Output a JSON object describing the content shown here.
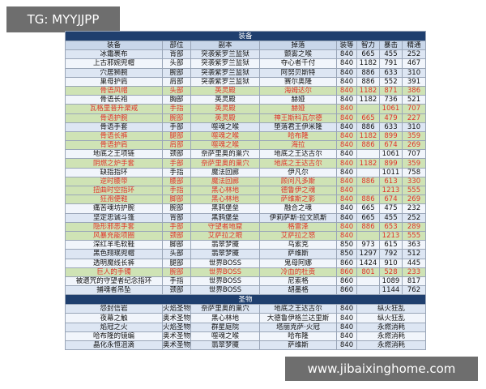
{
  "watermark_top": "TG: MYYJJPP",
  "watermark_bottom": "www.jibaixinghome.com",
  "gear": {
    "title": "装备",
    "headers": [
      "装备",
      "部位",
      "副本",
      "掉落",
      "装等",
      "智力",
      "暴击",
      "精通"
    ],
    "rows": [
      {
        "cells": [
          "冰霜裹布",
          "背部",
          "突袭紫罗兰监狱",
          "颤雾之喉",
          840,
          665,
          455,
          252
        ]
      },
      {
        "cells": [
          "上古邪婉兜帽",
          "头部",
          "突袭紫罗兰监狱",
          "夺心者千付",
          840,
          1182,
          791,
          467
        ]
      },
      {
        "cells": [
          "穴居狮腕",
          "腕部",
          "突袭紫罗兰监狱",
          "阿努贝斯特",
          840,
          886,
          633,
          310
        ]
      },
      {
        "cells": [
          "巢母护肩",
          "肩部",
          "突袭紫罗兰监狱",
          "赛尔奥隆",
          840,
          886,
          552,
          391
        ]
      },
      {
        "cells": [
          "骨语风帽",
          "头部",
          "英灵殿",
          "海姆达尔",
          840,
          1182,
          871,
          386
        ],
        "color": "#e0332b"
      },
      {
        "cells": [
          "骨语长袍",
          "胸部",
          "英灵殿",
          "赫娅",
          840,
          1182,
          736,
          521
        ]
      },
      {
        "cells": [
          "瓦格里普升渠戒",
          "手指",
          "英灵殿",
          "赫娅",
          840,
          null,
          1061,
          707
        ],
        "color": "#e0332b"
      },
      {
        "cells": [
          "骨语护腕",
          "腕部",
          "英灵殿",
          "神王斯科瓦尔德",
          840,
          665,
          479,
          227
        ],
        "color": "#e0332b"
      },
      {
        "cells": [
          "骨语手套",
          "手部",
          "噬魂之喉",
          "堕落君王伊米隆",
          840,
          886,
          633,
          310
        ]
      },
      {
        "cells": [
          "骨语长裤",
          "腿部",
          "噬魂之喉",
          "哈布隆",
          840,
          1182,
          899,
          359
        ],
        "color": "#e0332b"
      },
      {
        "cells": [
          "骨语护肩",
          "肩部",
          "噬魂之喉",
          "海拉",
          840,
          886,
          674,
          269
        ],
        "color": "#e0332b"
      },
      {
        "cells": [
          "地底之王项链",
          "颈部",
          "奈萨里奥的巢穴",
          "地底之王达古尔",
          840,
          null,
          1061,
          707
        ]
      },
      {
        "cells": [
          "阴燃之炉手套",
          "手部",
          "奈萨里奥的巢穴",
          "地底之王达古尔",
          840,
          1182,
          899,
          359
        ],
        "color": "#e0332b"
      },
      {
        "cells": [
          "缺指指环",
          "手指",
          "魔法回廊",
          "伊凡尔",
          840,
          null,
          1011,
          758
        ]
      },
      {
        "cells": [
          "逆时腰带",
          "腰部",
          "魔法回廊",
          "顾问凡多斯",
          840,
          886,
          613,
          330
        ],
        "color": "#e0332b"
      },
      {
        "cells": [
          "扭曲时空指环",
          "手指",
          "黑心林地",
          "德鲁伊之魂",
          840,
          null,
          1213,
          555
        ],
        "color": "#e0332b"
      },
      {
        "cells": [
          "狂孢便鞋",
          "脚部",
          "黑心林地",
          "萨维斯之影",
          840,
          886,
          674,
          269
        ],
        "color": "#e0332b"
      },
      {
        "cells": [
          "痛苦魂坊护腕",
          "腕部",
          "黑鸦堡垒",
          "融合之魂",
          840,
          665,
          475,
          232
        ]
      },
      {
        "cells": [
          "坚定忠诚斗篷",
          "背部",
          "黑鸦堡垒",
          "伊莉萨斯·拉文凯斯",
          840,
          665,
          455,
          252
        ]
      },
      {
        "cells": [
          "隐形邪恶手套",
          "手部",
          "守望者地窟",
          "格雷泽",
          840,
          886,
          653,
          289
        ],
        "color": "#e0332b"
      },
      {
        "cells": [
          "风暴充能项圈",
          "颈部",
          "艾萨拉之眼",
          "艾萨拉之怒",
          840,
          null,
          1213,
          555
        ],
        "color": "#e0332b"
      },
      {
        "cells": [
          "深红羊毛软鞋",
          "脚部",
          "翡翠梦魇",
          "乌索克",
          850,
          973,
          615,
          363
        ]
      },
      {
        "cells": [
          "黑色翔珉兜帽",
          "头部",
          "翡翠梦魇",
          "萨维斯",
          850,
          1297,
          792,
          512
        ]
      },
      {
        "cells": [
          "透明魔线长裤",
          "腿部",
          "世界BOSS",
          "鬼母阿娜",
          860,
          1424,
          910,
          445
        ]
      },
      {
        "cells": [
          "巨人的手镯",
          "腕部",
          "世界BOSS",
          "冷血的杜贡",
          860,
          801,
          528,
          233
        ],
        "color": "#e0332b"
      },
      {
        "cells": [
          "被遗咒的守望者纪念指环",
          "手指",
          "世界BOSS",
          "尼索格",
          860,
          null,
          1089,
          817
        ]
      },
      {
        "cells": [
          "捕魂者吊坠",
          "颈部",
          "世界BOSS",
          "胡墨格",
          860,
          null,
          1144,
          762
        ]
      }
    ]
  },
  "relics": {
    "title": "圣物",
    "rows": [
      {
        "cells": [
          "怨封信岩",
          "火焰圣物",
          "奈萨里奥的巢穴",
          "地底之王达古尔",
          840,
          "纵火狂乱"
        ]
      },
      {
        "cells": [
          "夜幕之触",
          "奥术圣物",
          "黑心林地",
          "大德鲁伊格兰达里斯",
          840,
          "纵火狂乱"
        ]
      },
      {
        "cells": [
          "焰冠之火",
          "火焰圣物",
          "群星庭院",
          "塔丽克萨·火冠",
          840,
          "永燃消耗"
        ]
      },
      {
        "cells": [
          "哈布隆的镜编",
          "奥术圣物",
          "噬魂之喉",
          "哈布隆",
          840,
          "永燃消耗"
        ]
      },
      {
        "cells": [
          "晶化永恒沮滴",
          "奥术圣物",
          "翡翠梦魇",
          "萨维斯",
          840,
          "永燃消耗"
        ]
      }
    ]
  }
}
